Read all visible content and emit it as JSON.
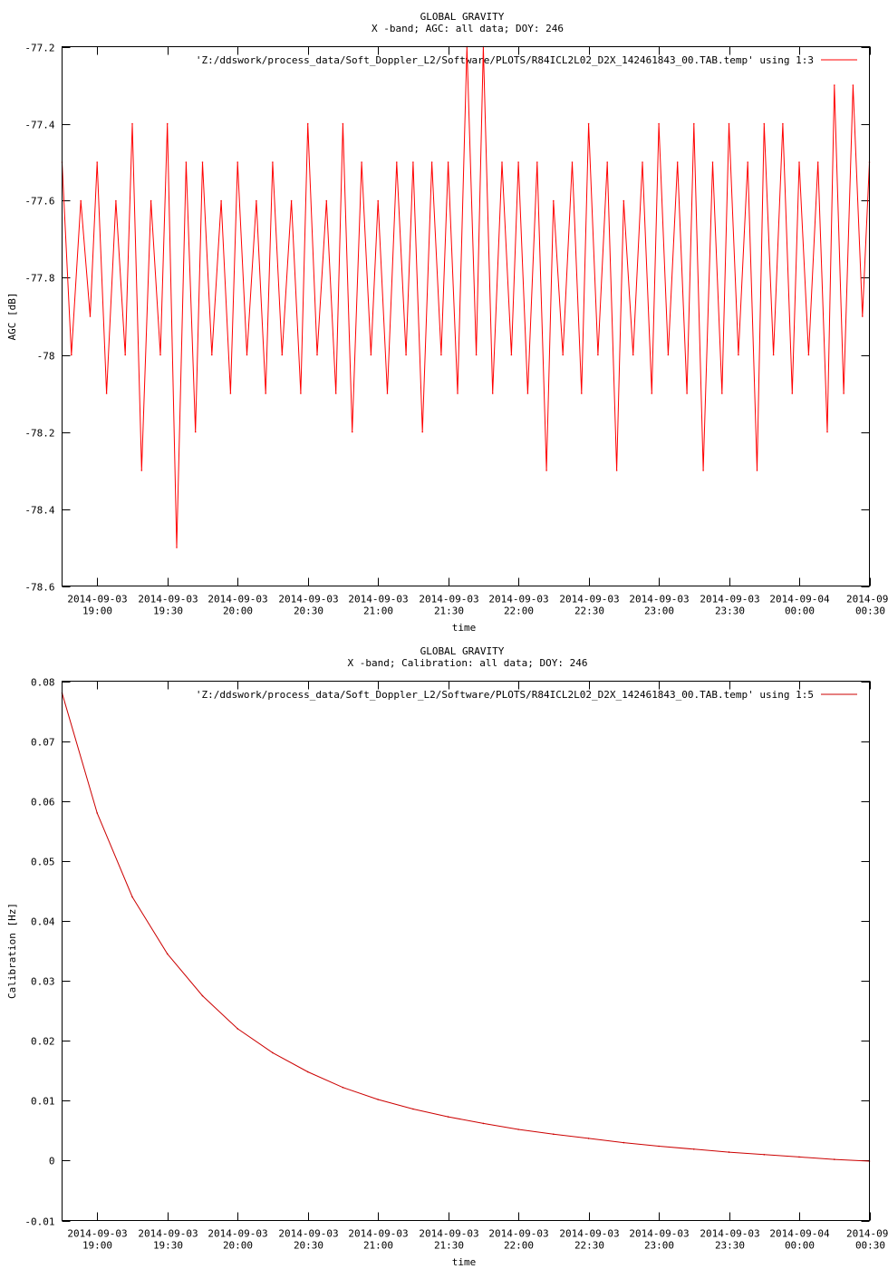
{
  "chart_data": [
    {
      "type": "line",
      "title": "GLOBAL GRAVITY",
      "subtitle": "X -band; AGC: all data; DOY: 246",
      "xlabel": "time",
      "ylabel": "AGC [dB]",
      "ylim": [
        -78.6,
        -77.2
      ],
      "yticks": [
        "-77.2",
        "-77.4",
        "-77.6",
        "-77.8",
        "-78",
        "-78.2",
        "-78.4",
        "-78.6"
      ],
      "xlim": [
        "2014-09-03 18:45",
        "2014-09-04 00:30"
      ],
      "xticks": [
        {
          "date": "2014-09-03",
          "time": "19:00"
        },
        {
          "date": "2014-09-03",
          "time": "19:30"
        },
        {
          "date": "2014-09-03",
          "time": "20:00"
        },
        {
          "date": "2014-09-03",
          "time": "20:30"
        },
        {
          "date": "2014-09-03",
          "time": "21:00"
        },
        {
          "date": "2014-09-03",
          "time": "21:30"
        },
        {
          "date": "2014-09-03",
          "time": "22:00"
        },
        {
          "date": "2014-09-03",
          "time": "22:30"
        },
        {
          "date": "2014-09-03",
          "time": "23:00"
        },
        {
          "date": "2014-09-03",
          "time": "23:30"
        },
        {
          "date": "2014-09-04",
          "time": "00:00"
        },
        {
          "date": "2014-09-",
          "time": "00:30"
        }
      ],
      "legend": "top-right",
      "series": [
        {
          "name": "'Z:/ddswork/process_data/Soft_Doppler_L2/Software/PLOTS/R84ICL2L02_D2X_142461843_00.TAB.temp' using 1:3",
          "color": "#ff0000",
          "x": [
            "18:45",
            "18:49",
            "18:53",
            "18:57",
            "19:00",
            "19:04",
            "19:08",
            "19:12",
            "19:15",
            "19:19",
            "19:23",
            "19:27",
            "19:30",
            "19:34",
            "19:38",
            "19:42",
            "19:45",
            "19:49",
            "19:53",
            "19:57",
            "20:00",
            "20:04",
            "20:08",
            "20:12",
            "20:15",
            "20:19",
            "20:23",
            "20:27",
            "20:30",
            "20:34",
            "20:38",
            "20:42",
            "20:45",
            "20:49",
            "20:53",
            "20:57",
            "21:00",
            "21:04",
            "21:08",
            "21:12",
            "21:15",
            "21:19",
            "21:23",
            "21:27",
            "21:30",
            "21:34",
            "21:38",
            "21:42",
            "21:45",
            "21:49",
            "21:53",
            "21:57",
            "22:00",
            "22:04",
            "22:08",
            "22:12",
            "22:15",
            "22:19",
            "22:23",
            "22:27",
            "22:30",
            "22:34",
            "22:38",
            "22:42",
            "22:45",
            "22:49",
            "22:53",
            "22:57",
            "23:00",
            "23:04",
            "23:08",
            "23:12",
            "23:15",
            "23:19",
            "23:23",
            "23:27",
            "23:30",
            "23:34",
            "23:38",
            "23:42",
            "23:45",
            "23:49",
            "23:53",
            "23:57",
            "00:00",
            "00:04",
            "00:08",
            "00:12",
            "00:15",
            "00:19",
            "00:23",
            "00:27",
            "00:30"
          ],
          "values": [
            -77.5,
            -78.0,
            -77.6,
            -77.9,
            -77.5,
            -78.1,
            -77.6,
            -78.0,
            -77.4,
            -78.3,
            -77.6,
            -78.0,
            -77.4,
            -78.5,
            -77.5,
            -78.2,
            -77.5,
            -78.0,
            -77.6,
            -78.1,
            -77.5,
            -78.0,
            -77.6,
            -78.1,
            -77.5,
            -78.0,
            -77.6,
            -78.1,
            -77.4,
            -78.0,
            -77.6,
            -78.1,
            -77.4,
            -78.2,
            -77.5,
            -78.0,
            -77.6,
            -78.1,
            -77.5,
            -78.0,
            -77.5,
            -78.2,
            -77.5,
            -78.0,
            -77.5,
            -78.1,
            -77.2,
            -78.0,
            -77.2,
            -78.1,
            -77.5,
            -78.0,
            -77.5,
            -78.1,
            -77.5,
            -78.3,
            -77.6,
            -78.0,
            -77.5,
            -78.1,
            -77.4,
            -78.0,
            -77.5,
            -78.3,
            -77.6,
            -78.0,
            -77.5,
            -78.1,
            -77.4,
            -78.0,
            -77.5,
            -78.1,
            -77.4,
            -78.3,
            -77.5,
            -78.1,
            -77.4,
            -78.0,
            -77.5,
            -78.3,
            -77.4,
            -78.0,
            -77.4,
            -78.1,
            -77.5,
            -78.0,
            -77.5,
            -78.2,
            -77.3,
            -78.1,
            -77.3,
            -77.9,
            -77.5
          ]
        }
      ]
    },
    {
      "type": "line",
      "title": "GLOBAL GRAVITY",
      "subtitle": "X -band; Calibration: all data; DOY: 246",
      "xlabel": "time",
      "ylabel": "Calibration [Hz]",
      "ylim": [
        -0.01,
        0.08
      ],
      "yticks": [
        "0.08",
        "0.07",
        "0.06",
        "0.05",
        "0.04",
        "0.03",
        "0.02",
        "0.01",
        "0",
        "-0.01"
      ],
      "xlim": [
        "2014-09-03 18:45",
        "2014-09-04 00:30"
      ],
      "xticks": [
        {
          "date": "2014-09-03",
          "time": "19:00"
        },
        {
          "date": "2014-09-03",
          "time": "19:30"
        },
        {
          "date": "2014-09-03",
          "time": "20:00"
        },
        {
          "date": "2014-09-03",
          "time": "20:30"
        },
        {
          "date": "2014-09-03",
          "time": "21:00"
        },
        {
          "date": "2014-09-03",
          "time": "21:30"
        },
        {
          "date": "2014-09-03",
          "time": "22:00"
        },
        {
          "date": "2014-09-03",
          "time": "22:30"
        },
        {
          "date": "2014-09-03",
          "time": "23:00"
        },
        {
          "date": "2014-09-03",
          "time": "23:30"
        },
        {
          "date": "2014-09-04",
          "time": "00:00"
        },
        {
          "date": "2014-09-",
          "time": "00:30"
        }
      ],
      "legend": "top-right",
      "series": [
        {
          "name": "'Z:/ddswork/process_data/Soft_Doppler_L2/Software/PLOTS/R84ICL2L02_D2X_142461843_00.TAB.temp' using 1:5",
          "color": "#cc0000",
          "x": [
            "18:45",
            "19:00",
            "19:15",
            "19:30",
            "19:45",
            "20:00",
            "20:15",
            "20:30",
            "20:45",
            "21:00",
            "21:15",
            "21:30",
            "21:45",
            "22:00",
            "22:15",
            "22:30",
            "22:45",
            "23:00",
            "23:15",
            "23:30",
            "23:45",
            "00:00",
            "00:15",
            "00:30"
          ],
          "values": [
            0.078,
            0.058,
            0.044,
            0.0345,
            0.0275,
            0.022,
            0.018,
            0.0148,
            0.0122,
            0.0102,
            0.0086,
            0.0073,
            0.0062,
            0.0052,
            0.0044,
            0.0037,
            0.003,
            0.0024,
            0.0019,
            0.0014,
            0.001,
            0.0006,
            0.0002,
            -0.0001
          ]
        }
      ]
    }
  ]
}
